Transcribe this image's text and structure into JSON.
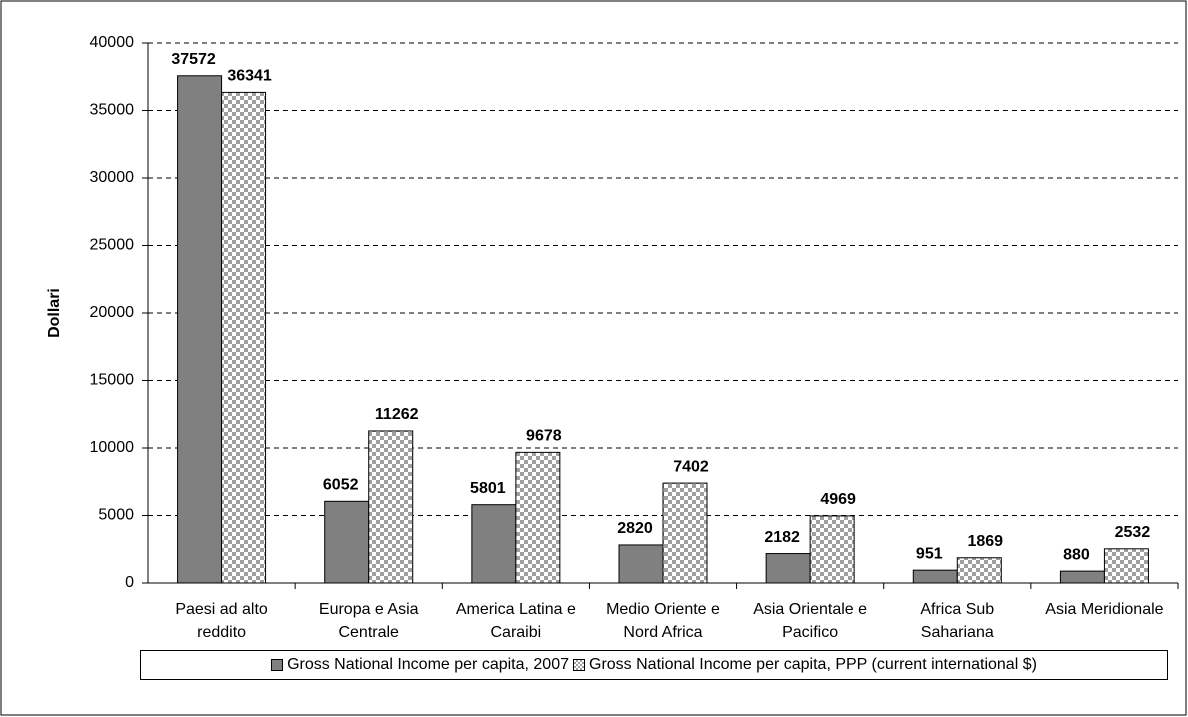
{
  "chart_data": {
    "type": "bar",
    "y_label": "Dollari",
    "categories": [
      "Paesi ad alto reddito",
      "Europa e Asia Centrale",
      "America Latina e Caraibi",
      "Medio Oriente e Nord Africa",
      "Asia Orientale e Pacifico",
      "Africa Sub Sahariana",
      "Asia Meridionale"
    ],
    "series": [
      {
        "name": "Gross National Income per capita, 2007",
        "color": "#808080",
        "pattern": "solid",
        "values": [
          37572,
          6052,
          5801,
          2820,
          2182,
          951,
          880
        ]
      },
      {
        "name": "Gross National Income per capita, PPP (current international $)",
        "color": "#a0a0a0",
        "pattern": "checker",
        "values": [
          36341,
          11262,
          9678,
          7402,
          4969,
          1869,
          2532
        ]
      }
    ],
    "ylim": [
      0,
      40000
    ],
    "yticks": [
      0,
      5000,
      10000,
      15000,
      20000,
      25000,
      30000,
      35000,
      40000
    ],
    "grid": true,
    "legend": "bottom"
  }
}
